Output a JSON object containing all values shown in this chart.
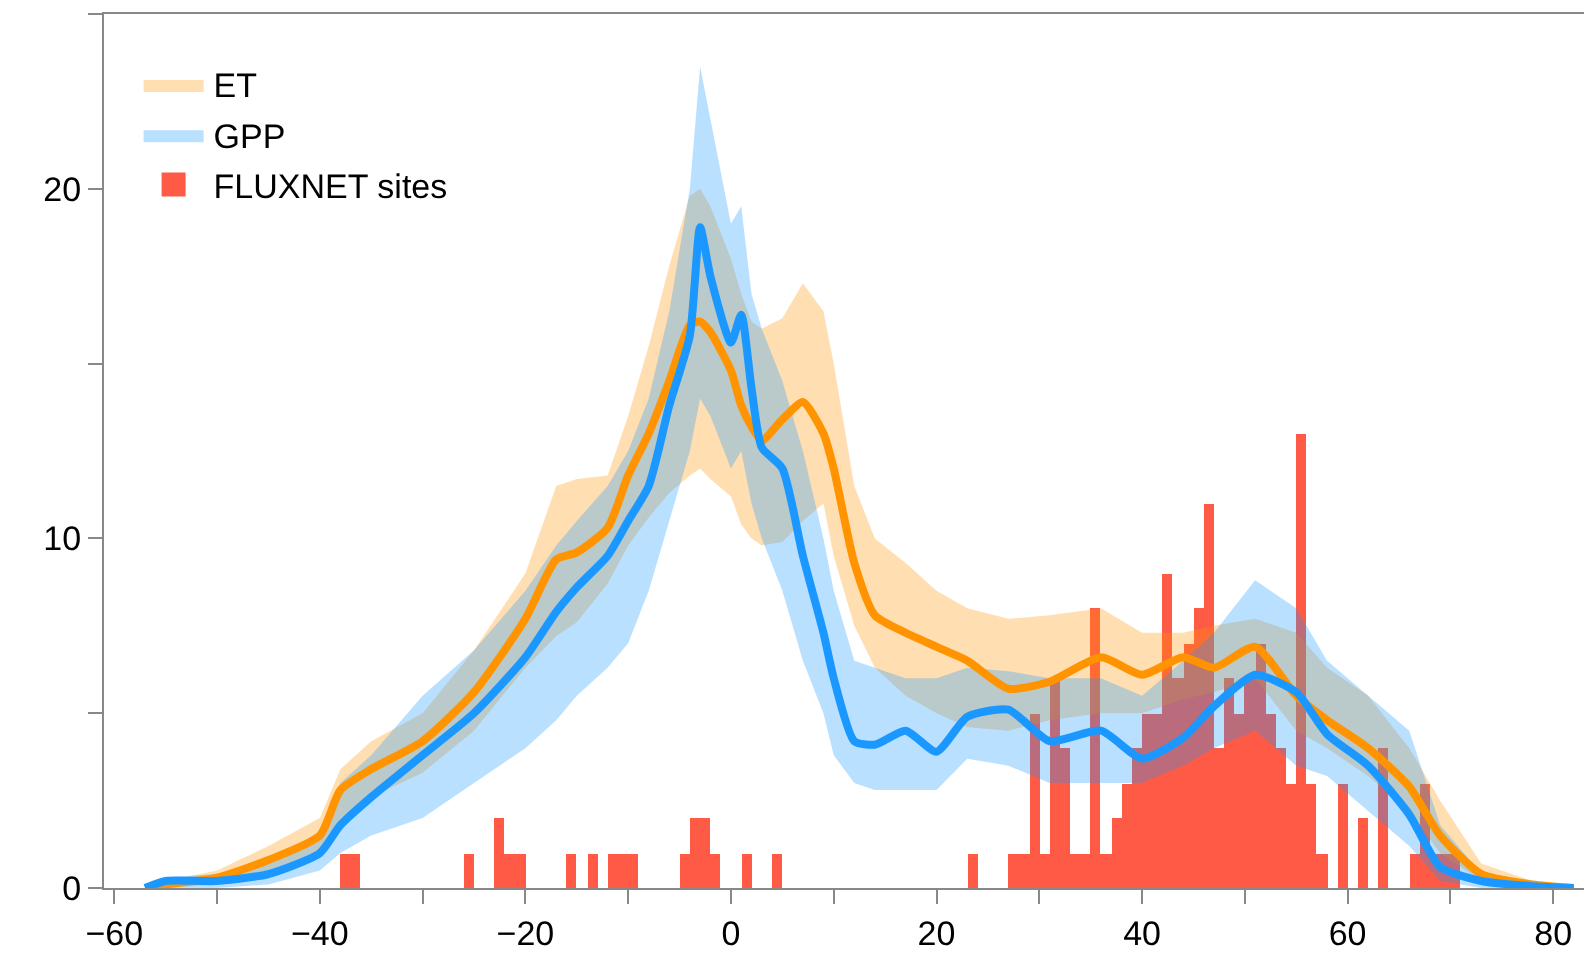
{
  "chart_data": {
    "type": "line",
    "xlim": [
      -61,
      83
    ],
    "ylim": [
      0,
      25
    ],
    "xticks": [
      -60,
      {
        "value": -50,
        "label": null
      },
      -40,
      {
        "value": -30,
        "label": null
      },
      -20,
      {
        "value": -10,
        "label": null
      },
      0,
      {
        "value": 10,
        "label": null
      },
      20,
      {
        "value": 30,
        "label": null
      },
      40,
      {
        "value": 50,
        "label": null
      },
      60,
      {
        "value": 70,
        "label": null
      },
      80
    ],
    "yticks": [
      0,
      {
        "value": 5,
        "label": null
      },
      10,
      {
        "value": 15,
        "label": null
      },
      20,
      {
        "value": 25,
        "label": null
      }
    ],
    "legend": "top left",
    "series": [
      {
        "name": "FLUXNET sites",
        "type": "histogram",
        "color": "#ff5a45",
        "bins": [
          -39,
          -38,
          -37,
          -36,
          -35,
          -34,
          -33,
          -32,
          -31,
          -30,
          -29,
          -28,
          -27,
          -26,
          -25,
          -24,
          -23,
          -22,
          -21,
          -20,
          -19,
          -18,
          -17,
          -16,
          -15,
          -14,
          -13,
          -12,
          -11,
          -10,
          -9,
          -8,
          -7,
          -6,
          -5,
          -4,
          -3,
          -2,
          -1,
          0,
          1,
          2,
          3,
          4,
          5,
          6,
          7,
          8,
          9,
          10,
          11,
          12,
          13,
          14,
          15,
          16,
          17,
          18,
          19,
          20,
          21,
          22,
          23,
          24,
          25,
          26,
          27,
          28,
          29,
          30,
          31,
          32,
          33,
          34,
          35,
          36,
          37,
          38,
          39,
          40,
          41,
          42,
          43,
          44,
          45,
          46,
          47,
          48,
          49,
          50,
          51,
          52,
          53,
          54,
          55,
          56,
          57,
          58,
          59,
          60,
          61,
          62,
          63,
          64,
          65,
          66,
          67,
          68,
          69,
          70,
          71,
          72
        ],
        "values": [
          0,
          1,
          1,
          0,
          0,
          0,
          0,
          0,
          0,
          0,
          0,
          0,
          0,
          1,
          0,
          0,
          2,
          1,
          1,
          0,
          0,
          0,
          0,
          1,
          0,
          1,
          0,
          1,
          1,
          1,
          0,
          0,
          0,
          0,
          1,
          2,
          2,
          1,
          0,
          0,
          1,
          0,
          0,
          1,
          0,
          0,
          0,
          0,
          0,
          0,
          0,
          0,
          0,
          0,
          0,
          0,
          0,
          0,
          0,
          0,
          0,
          0,
          1,
          0,
          0,
          0,
          1,
          1,
          5,
          1,
          6,
          4,
          1,
          1,
          8,
          1,
          2,
          3,
          4,
          5,
          5,
          9,
          6,
          7,
          8,
          11,
          4,
          6,
          5,
          6,
          7,
          5,
          4,
          3,
          13,
          3,
          1,
          0,
          3,
          0,
          2,
          0,
          4,
          0,
          0,
          1,
          3,
          1,
          1,
          1,
          0
        ]
      },
      {
        "name": "ET",
        "color": "#ff9400",
        "x": [
          -57,
          -55,
          -50,
          -45,
          -40,
          -38,
          -35,
          -30,
          -25,
          -20,
          -17,
          -15,
          -12,
          -10,
          -8,
          -6,
          -4,
          -3,
          -2,
          0,
          1,
          2,
          3,
          5,
          7,
          9,
          10,
          12,
          14,
          17,
          20,
          23,
          27,
          31,
          36,
          40,
          44,
          47,
          51,
          55,
          58,
          62,
          66,
          69,
          73,
          78,
          82
        ],
        "values": [
          0,
          0.1,
          0.3,
          0.8,
          1.5,
          2.8,
          3.4,
          4.2,
          5.6,
          7.7,
          9.4,
          9.6,
          10.3,
          11.8,
          13.0,
          14.5,
          16.1,
          16.2,
          15.9,
          14.8,
          13.8,
          13.2,
          12.8,
          13.4,
          13.9,
          13.0,
          12.0,
          9.3,
          7.8,
          7.3,
          6.9,
          6.5,
          5.7,
          5.9,
          6.6,
          6.1,
          6.6,
          6.3,
          6.9,
          5.5,
          4.8,
          4.0,
          2.9,
          1.5,
          0.4,
          0.1,
          0
        ],
        "lower": [
          0,
          0,
          0.1,
          0.4,
          1.0,
          2.0,
          2.6,
          3.3,
          4.5,
          6.3,
          7.2,
          7.6,
          8.7,
          9.8,
          10.6,
          11.3,
          11.8,
          12.0,
          11.7,
          11.2,
          10.4,
          10.0,
          9.8,
          9.9,
          10.5,
          11.0,
          9.5,
          7.5,
          6.3,
          5.5,
          5.0,
          4.6,
          4.5,
          4.8,
          5.0,
          5.0,
          5.4,
          5.6,
          6.0,
          4.5,
          4.0,
          3.2,
          2.2,
          1.0,
          0.2,
          0,
          0
        ],
        "upper": [
          0,
          0.2,
          0.5,
          1.2,
          2.0,
          3.4,
          4.2,
          5.0,
          6.8,
          9.0,
          11.5,
          11.7,
          11.8,
          13.5,
          15.5,
          17.8,
          19.8,
          20.0,
          19.5,
          18.0,
          17.0,
          16.2,
          16.0,
          16.3,
          17.3,
          16.5,
          15.0,
          11.5,
          10.0,
          9.3,
          8.5,
          8.0,
          7.7,
          7.8,
          8.0,
          7.3,
          7.3,
          7.5,
          7.7,
          7.3,
          6.3,
          5.5,
          4.0,
          2.5,
          0.7,
          0.2,
          0
        ]
      },
      {
        "name": "GPP",
        "color": "#1a98ff",
        "x": [
          -57,
          -55,
          -50,
          -45,
          -40,
          -38,
          -35,
          -30,
          -25,
          -20,
          -17,
          -15,
          -12,
          -10,
          -8,
          -6,
          -4,
          -3,
          -2,
          0,
          1,
          2,
          3,
          5,
          7,
          9,
          10,
          12,
          14,
          17,
          20,
          23,
          27,
          31,
          36,
          40,
          44,
          47,
          51,
          55,
          58,
          62,
          66,
          69,
          73,
          78,
          82
        ],
        "values": [
          0,
          0.2,
          0.2,
          0.4,
          1.0,
          1.8,
          2.6,
          3.8,
          5.0,
          6.6,
          7.9,
          8.6,
          9.5,
          10.5,
          11.5,
          13.8,
          15.8,
          18.9,
          17.5,
          15.6,
          16.4,
          14.3,
          12.6,
          12.0,
          9.5,
          7.3,
          6.0,
          4.2,
          4.1,
          4.5,
          3.9,
          4.9,
          5.1,
          4.2,
          4.5,
          3.7,
          4.3,
          5.2,
          6.1,
          5.6,
          4.4,
          3.5,
          2.1,
          0.6,
          0.2,
          0.05,
          0
        ],
        "lower": [
          0,
          0,
          0,
          0.1,
          0.5,
          1.0,
          1.5,
          2.0,
          3.0,
          4.0,
          4.8,
          5.5,
          6.3,
          7.0,
          8.5,
          10.5,
          12.5,
          14.0,
          13.5,
          12.0,
          12.5,
          11.0,
          10.0,
          8.5,
          6.5,
          5.0,
          3.8,
          3.0,
          2.8,
          2.8,
          2.8,
          3.7,
          3.5,
          3.0,
          3.0,
          3.0,
          3.5,
          4.0,
          4.5,
          3.5,
          3.2,
          2.2,
          1.2,
          0.2,
          0,
          0,
          0
        ],
        "upper": [
          0.1,
          0.3,
          0.4,
          0.8,
          1.6,
          3.0,
          3.8,
          5.5,
          6.8,
          8.5,
          9.8,
          10.5,
          11.5,
          12.5,
          14.0,
          16.5,
          20.0,
          23.5,
          22.0,
          19.0,
          19.5,
          17.0,
          16.0,
          14.5,
          12.5,
          10.0,
          8.5,
          6.5,
          6.3,
          6.0,
          6.0,
          6.3,
          6.2,
          6.0,
          6.0,
          5.5,
          6.5,
          7.3,
          8.8,
          8.0,
          6.5,
          5.5,
          4.5,
          1.8,
          0.4,
          0.1,
          0
        ]
      }
    ]
  }
}
